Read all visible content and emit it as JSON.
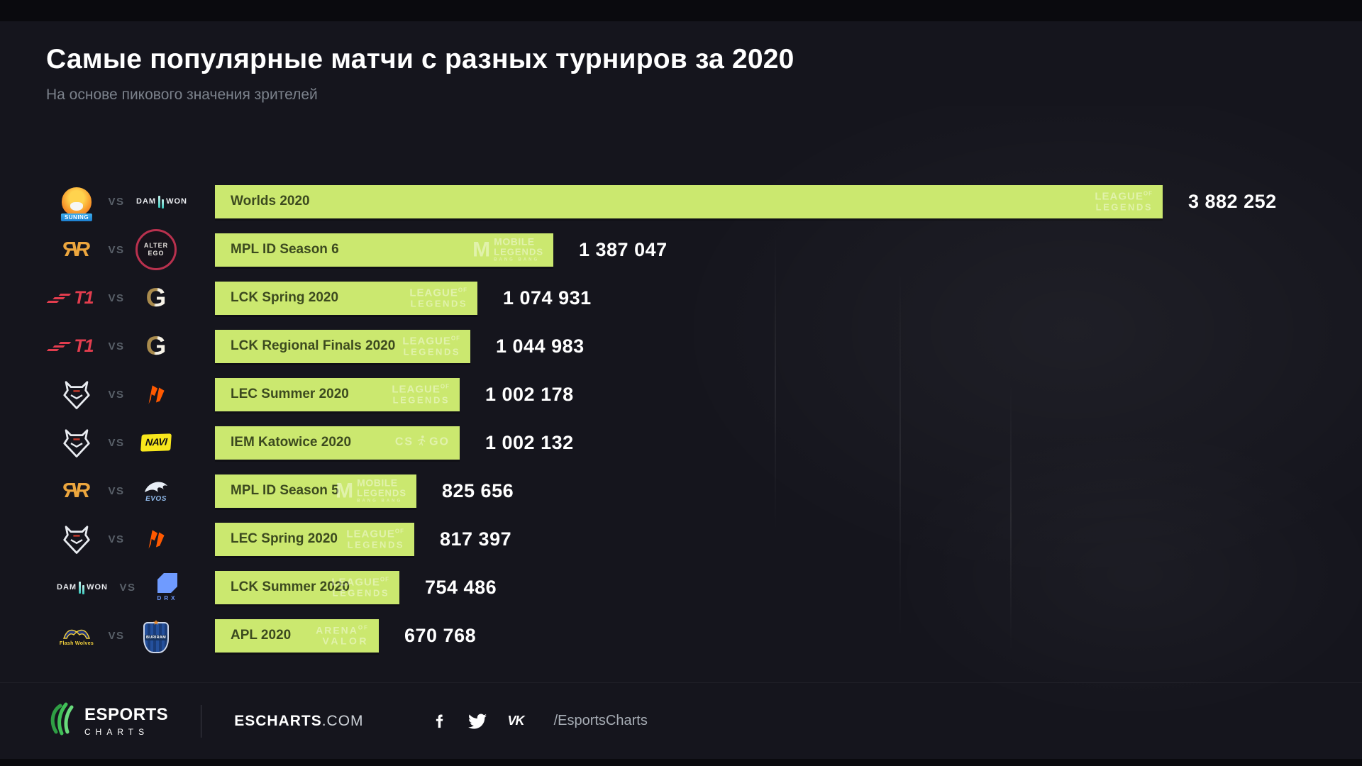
{
  "header": {
    "title": "Самые популярные матчи с разных турниров за 2020",
    "subtitle": "На основе пикового значения зрителей"
  },
  "vs_label": "VS",
  "chart_data": {
    "type": "bar",
    "orientation": "horizontal",
    "title": "Самые популярные матчи с разных турниров за 2020",
    "subtitle": "На основе пикового значения зрителей",
    "value_unit": "peak viewers",
    "xlim": [
      0,
      3882252
    ],
    "bar_color": "#cbe86f",
    "grid": false,
    "categories": [
      "Worlds 2020",
      "MPL ID Season 6",
      "LCK Spring 2020",
      "LCK Regional Finals 2020",
      "LEC Summer 2020",
      "IEM Katowice 2020",
      "MPL ID Season 5",
      "LEC Spring 2020",
      "LCK Summer 2020",
      "APL 2020"
    ],
    "values": [
      3882252,
      1387047,
      1074931,
      1044983,
      1002178,
      1002132,
      825656,
      817397,
      754486,
      670768
    ],
    "rows": [
      {
        "tournament": "Worlds 2020",
        "game": "League of Legends",
        "value": 3882252,
        "value_label": "3 882 252",
        "team1": {
          "name": "Suning",
          "logo": "suning",
          "text": "SUNING"
        },
        "team2": {
          "name": "DAMWON Gaming",
          "logo": "damwon",
          "text": "DAMWON"
        },
        "watermark": {
          "type": "lol",
          "lines": [
            "LEAGUE",
            "LEGENDS"
          ],
          "of": "OF"
        }
      },
      {
        "tournament": "MPL ID Season 6",
        "game": "Mobile Legends: Bang Bang",
        "value": 1387047,
        "value_label": "1 387 047",
        "team1": {
          "name": "RRQ",
          "logo": "rrq",
          "text": "RR"
        },
        "team2": {
          "name": "Alter Ego",
          "logo": "alterego",
          "text": "ALTER EGO"
        },
        "watermark": {
          "type": "ml",
          "icon": "M",
          "lines": [
            "MOBILE",
            "LEGENDS"
          ],
          "sub": "BANG BANG"
        }
      },
      {
        "tournament": "LCK Spring 2020",
        "game": "League of Legends",
        "value": 1074931,
        "value_label": "1 074 931",
        "team1": {
          "name": "T1",
          "logo": "t1",
          "text": "T1"
        },
        "team2": {
          "name": "Gen.G",
          "logo": "geng",
          "text": "G"
        },
        "watermark": {
          "type": "lol",
          "lines": [
            "LEAGUE",
            "LEGENDS"
          ],
          "of": "OF"
        }
      },
      {
        "tournament": "LCK Regional Finals 2020",
        "game": "League of Legends",
        "value": 1044983,
        "value_label": "1 044 983",
        "team1": {
          "name": "T1",
          "logo": "t1",
          "text": "T1"
        },
        "team2": {
          "name": "Gen.G",
          "logo": "geng",
          "text": "G"
        },
        "watermark": {
          "type": "lol",
          "lines": [
            "LEAGUE",
            "LEGENDS"
          ],
          "of": "OF"
        }
      },
      {
        "tournament": "LEC Summer 2020",
        "game": "League of Legends",
        "value": 1002178,
        "value_label": "1 002 178",
        "team1": {
          "name": "G2 Esports",
          "logo": "g2",
          "text": ""
        },
        "team2": {
          "name": "Fnatic",
          "logo": "fnatic",
          "text": ""
        },
        "watermark": {
          "type": "lol",
          "lines": [
            "LEAGUE",
            "LEGENDS"
          ],
          "of": "OF"
        }
      },
      {
        "tournament": "IEM Katowice 2020",
        "game": "CS:GO",
        "value": 1002132,
        "value_label": "1 002 132",
        "team1": {
          "name": "G2 Esports",
          "logo": "g2",
          "text": ""
        },
        "team2": {
          "name": "Natus Vincere",
          "logo": "navi",
          "text": "NAVI"
        },
        "watermark": {
          "type": "csgo",
          "lines": [
            "CS",
            "GO"
          ]
        }
      },
      {
        "tournament": "MPL ID Season 5",
        "game": "Mobile Legends: Bang Bang",
        "value": 825656,
        "value_label": "825 656",
        "team1": {
          "name": "RRQ",
          "logo": "rrq",
          "text": "RR"
        },
        "team2": {
          "name": "EVOS Esports",
          "logo": "evos",
          "text": "EVOS"
        },
        "watermark": {
          "type": "ml",
          "icon": "M",
          "lines": [
            "MOBILE",
            "LEGENDS"
          ],
          "sub": "BANG BANG"
        }
      },
      {
        "tournament": "LEC Spring 2020",
        "game": "League of Legends",
        "value": 817397,
        "value_label": "817 397",
        "team1": {
          "name": "G2 Esports",
          "logo": "g2",
          "text": ""
        },
        "team2": {
          "name": "Fnatic",
          "logo": "fnatic",
          "text": ""
        },
        "watermark": {
          "type": "lol",
          "lines": [
            "LEAGUE",
            "LEGENDS"
          ],
          "of": "OF"
        }
      },
      {
        "tournament": "LCK Summer 2020",
        "game": "League of Legends",
        "value": 754486,
        "value_label": "754 486",
        "team1": {
          "name": "DAMWON Gaming",
          "logo": "damwon",
          "text": "DAMWON"
        },
        "team2": {
          "name": "DRX",
          "logo": "drx",
          "text": "DRX"
        },
        "watermark": {
          "type": "lol",
          "lines": [
            "LEAGUE",
            "LEGENDS"
          ],
          "of": "OF"
        }
      },
      {
        "tournament": "APL 2020",
        "game": "Arena of Valor",
        "value": 670768,
        "value_label": "670 768",
        "team1": {
          "name": "Flash Wolves",
          "logo": "flashwolves",
          "text": "Flash Wolves"
        },
        "team2": {
          "name": "Buriram United Esports",
          "logo": "buriram",
          "text": "BURIRAM"
        },
        "watermark": {
          "type": "aov",
          "lines": [
            "ARENA",
            "VALOR"
          ],
          "of": "OF"
        }
      }
    ]
  },
  "footer": {
    "brand_line1": "ESPORTS",
    "brand_line2": "CHARTS",
    "site_bold": "ESCHARTS",
    "site_suffix": ".COM",
    "vk_label": "VK",
    "social_handle": "/EsportsCharts"
  },
  "colors": {
    "background": "#15151d",
    "frame": "#0a0a0e",
    "bar": "#cbe86f",
    "bar_label": "#3c4a1f",
    "value": "#ffffff",
    "subtitle": "#7b818b",
    "vs": "#596069",
    "brand_green": "#40c057"
  }
}
